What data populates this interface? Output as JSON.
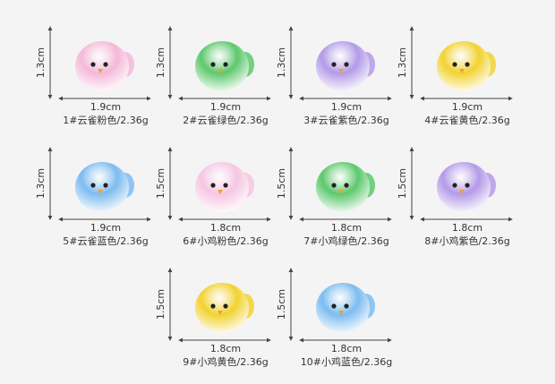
{
  "items": [
    {
      "height": "1.3cm",
      "width": "1.9cm",
      "caption": "1#云雀粉色/2.36g"
    },
    {
      "height": "1.3cm",
      "width": "1.9cm",
      "caption": "2#云雀绿色/2.36g"
    },
    {
      "height": "1.3cm",
      "width": "1.9cm",
      "caption": "3#云雀紫色/2.36g"
    },
    {
      "height": "1.3cm",
      "width": "1.9cm",
      "caption": "4#云雀黄色/2.36g"
    },
    {
      "height": "1.3cm",
      "width": "1.9cm",
      "caption": "5#云雀蓝色/2.36g"
    },
    {
      "height": "1.5cm",
      "width": "1.8cm",
      "caption": "6#小鸡粉色/2.36g"
    },
    {
      "height": "1.5cm",
      "width": "1.8cm",
      "caption": "7#小鸡绿色/2.36g"
    },
    {
      "height": "1.5cm",
      "width": "1.8cm",
      "caption": "8#小鸡紫色/2.36g"
    },
    {
      "height": "1.5cm",
      "width": "1.8cm",
      "caption": "9#小鸡黄色/2.36g"
    },
    {
      "height": "1.5cm",
      "width": "1.8cm",
      "caption": "10#小鸡蓝色/2.36g"
    }
  ]
}
